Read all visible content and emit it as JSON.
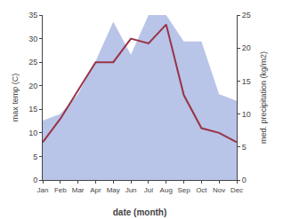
{
  "chart_data": {
    "type": "line",
    "categories": [
      "Jan",
      "Feb",
      "Mar",
      "Apr",
      "May",
      "Jun",
      "Jul",
      "Aug",
      "Sep",
      "Oct",
      "Nov",
      "Dec"
    ],
    "xlabel": "date (month)",
    "ylabel": "max temp (C)",
    "y2label": "med. precipitation (kg/m2)",
    "series": [
      {
        "type": "area",
        "axis": "y2",
        "color": "#b8c4e8",
        "values": [
          9,
          10,
          13,
          18,
          24,
          19,
          25,
          25,
          21,
          21,
          13,
          12
        ]
      },
      {
        "type": "line",
        "color": "#993344",
        "values": [
          8,
          13,
          19,
          25,
          25,
          30,
          29,
          33,
          18,
          11,
          10,
          8
        ]
      }
    ],
    "ylim": [
      0,
      35
    ],
    "yticks": [
      0,
      5,
      10,
      15,
      20,
      25,
      30,
      35
    ],
    "y2lim": [
      0,
      25
    ],
    "y2ticks": [
      0,
      5,
      10,
      15,
      20,
      25
    ],
    "grid": false
  }
}
